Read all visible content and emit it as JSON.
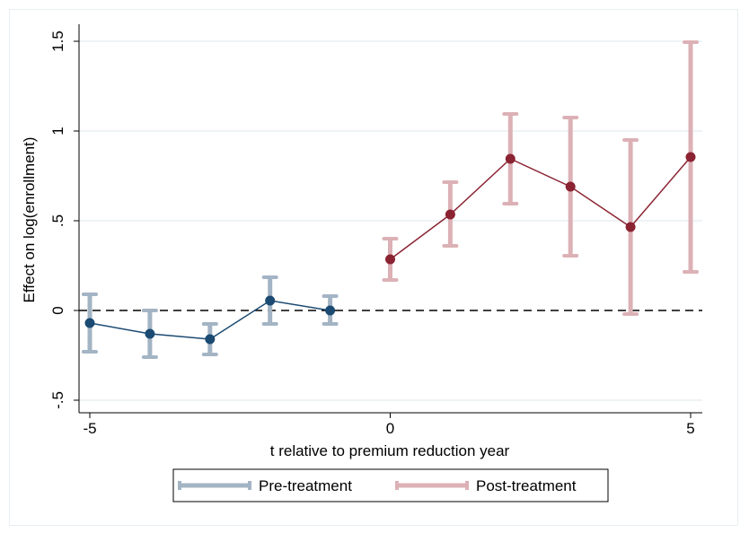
{
  "chart_data": {
    "type": "scatter",
    "title": "",
    "xlabel": "t relative to premium reduction year",
    "ylabel": "Effect on log(enrollment)",
    "xlim": [
      -5,
      5
    ],
    "ylim": [
      -0.5,
      1.5
    ],
    "x_ticks": [
      -5,
      0,
      5
    ],
    "x_tick_labels": [
      "-5",
      "0",
      "5"
    ],
    "y_ticks": [
      -0.5,
      0,
      0.5,
      1,
      1.5
    ],
    "y_tick_labels": [
      "-.5",
      "0",
      ".5",
      "1",
      "1.5"
    ],
    "reference_line_y": 0,
    "grid": true,
    "legend_position": "bottom",
    "series": [
      {
        "name": "Pre-treatment",
        "color": "#1b4a72",
        "ci_color": "#a3b4c4",
        "x": [
          -5,
          -4,
          -3,
          -2,
          -1
        ],
        "y": [
          -0.07,
          -0.13,
          -0.16,
          0.055,
          0.0
        ],
        "ci_low": [
          -0.23,
          -0.26,
          -0.245,
          -0.075,
          -0.075
        ],
        "ci_high": [
          0.09,
          0.0,
          -0.075,
          0.185,
          0.08
        ]
      },
      {
        "name": "Post-treatment",
        "color": "#8b2332",
        "ci_color": "#dcb1b6",
        "x": [
          0,
          1,
          2,
          3,
          4,
          5
        ],
        "y": [
          0.285,
          0.535,
          0.845,
          0.69,
          0.465,
          0.855
        ],
        "ci_low": [
          0.17,
          0.36,
          0.595,
          0.305,
          -0.02,
          0.215
        ],
        "ci_high": [
          0.4,
          0.715,
          1.095,
          1.075,
          0.95,
          1.495
        ]
      }
    ]
  }
}
